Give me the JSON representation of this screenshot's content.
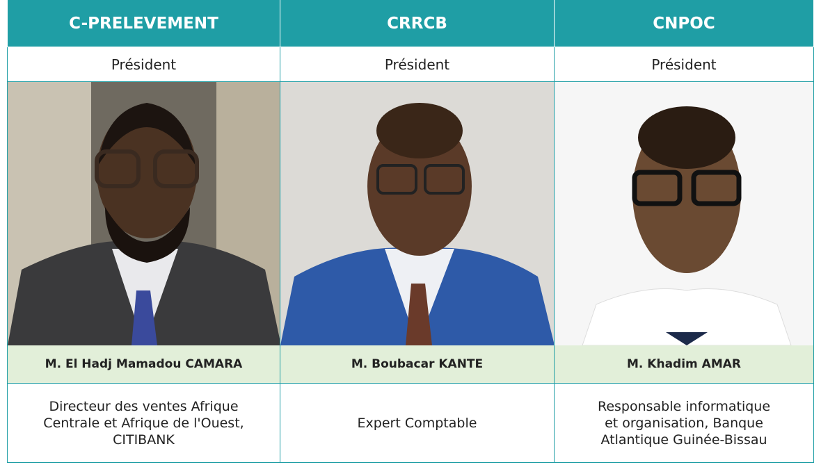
{
  "columns": [
    {
      "org": "C-PRELEVEMENT",
      "role": "Président",
      "name": "M. El Hadj Mamadou CAMARA",
      "description": [
        "Directeur des ventes Afrique",
        "Centrale et Afrique de l'Ouest,",
        "CITIBANK"
      ]
    },
    {
      "org": "CRRCB",
      "role": "Président",
      "name": "M. Boubacar KANTE",
      "description": [
        "Expert Comptable"
      ]
    },
    {
      "org": "CNPOC",
      "role": "Président",
      "name": "M. Khadim AMAR",
      "description": [
        "Responsable informatique",
        "et organisation, Banque",
        "Atlantique Guinée-Bissau"
      ]
    }
  ]
}
